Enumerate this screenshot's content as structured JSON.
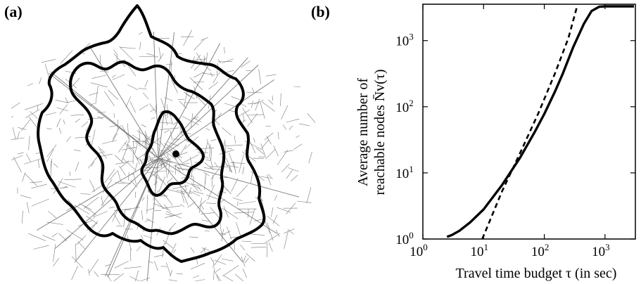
{
  "panels": {
    "a_label": "(a)",
    "b_label": "(b)"
  },
  "map_panel": {
    "description_icon": "street-network-map-with-isochrones",
    "isochrone_count": 3,
    "center_marker": "dot"
  },
  "chart_data": {
    "type": "line",
    "title": "",
    "xlabel": "Travel time budget τ (in sec)",
    "ylabel_line1": "Average number of",
    "ylabel_line2": "reachable nodes N̄v(τ)",
    "x_scale": "log",
    "y_scale": "log",
    "xlim": [
      1,
      3162
    ],
    "ylim": [
      1,
      3548
    ],
    "x_ticks": [
      {
        "value": 1,
        "base": "10",
        "exp": "0"
      },
      {
        "value": 10,
        "base": "10",
        "exp": "1"
      },
      {
        "value": 100,
        "base": "10",
        "exp": "2"
      },
      {
        "value": 1000,
        "base": "10",
        "exp": "3"
      }
    ],
    "y_ticks": [
      {
        "value": 1,
        "base": "10",
        "exp": "0"
      },
      {
        "value": 10,
        "base": "10",
        "exp": "1"
      },
      {
        "value": 100,
        "base": "10",
        "exp": "2"
      },
      {
        "value": 1000,
        "base": "10",
        "exp": "3"
      }
    ],
    "grid": false,
    "series": [
      {
        "style": "solid",
        "x": [
          2.5,
          3,
          4,
          6,
          10,
          20,
          40,
          70,
          100,
          150,
          200,
          300,
          450,
          600,
          800,
          1000,
          3000
        ],
        "y": [
          1.08,
          1.15,
          1.33,
          1.78,
          2.8,
          6.5,
          17,
          42,
          78,
          170,
          310,
          800,
          1800,
          2800,
          3250,
          3300,
          3300
        ]
      },
      {
        "style": "dashed",
        "x": [
          9.5,
          20,
          40,
          80,
          150,
          250,
          350
        ],
        "y": [
          1.0,
          5.2,
          20,
          80,
          320,
          1100,
          3400
        ]
      }
    ]
  },
  "colors": {
    "line": "#000000",
    "street": "#7a7a7a",
    "background": "#ffffff"
  }
}
